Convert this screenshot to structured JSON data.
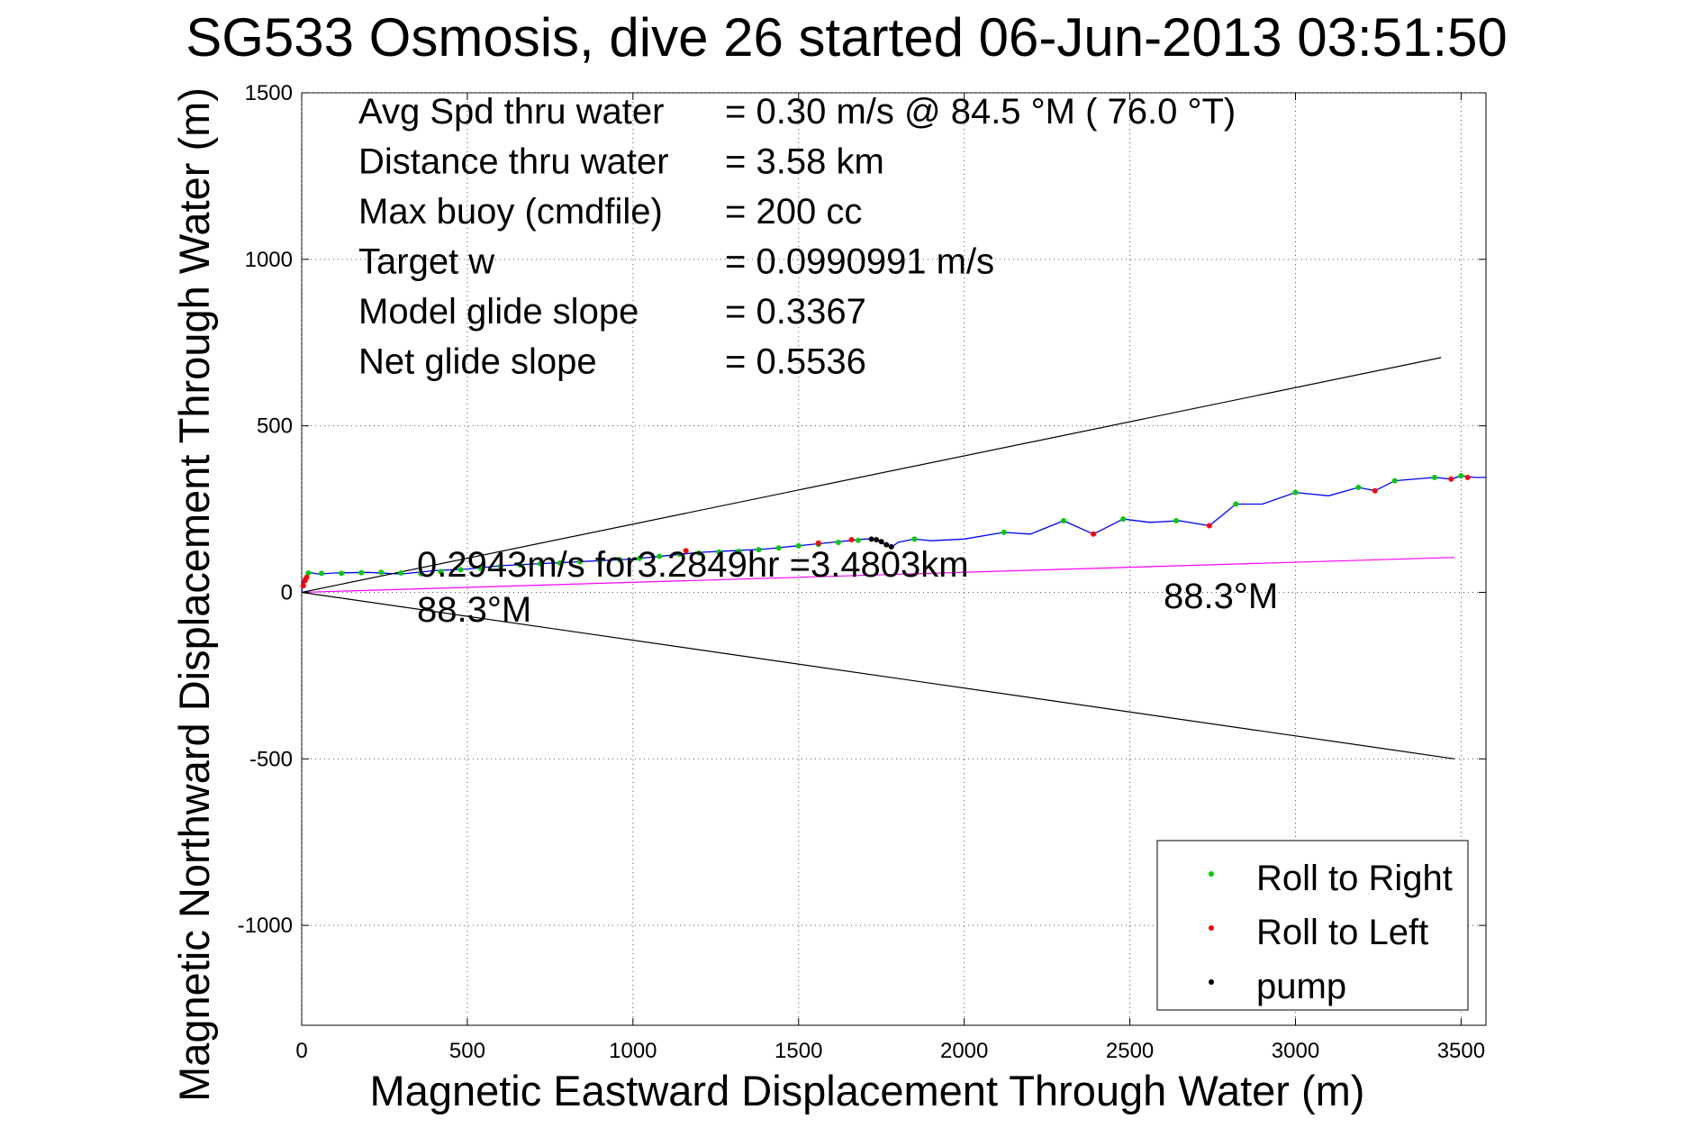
{
  "chart_data": {
    "type": "line",
    "title": "SG533 Osmosis, dive 26 started 06-Jun-2013 03:51:50",
    "xlabel": "Magnetic Eastward Displacement Through Water (m)",
    "ylabel": "Magnetic Northward Displacement Through Water (m)",
    "xlim": [
      0,
      3575
    ],
    "ylim": [
      -1300,
      1500
    ],
    "xticks": [
      0,
      500,
      1000,
      1500,
      2000,
      2500,
      3000,
      3500
    ],
    "yticks": [
      -1000,
      -500,
      0,
      500,
      1000,
      1500
    ],
    "grid": true,
    "info_lines": [
      {
        "label": "Avg Spd thru water",
        "value": "=  0.30 m/s @  84.5 °M ( 76.0 °T)"
      },
      {
        "label": "Distance thru water",
        "value": "=  3.58 km"
      },
      {
        "label": "Max buoy (cmdfile)",
        "value": "= 200 cc"
      },
      {
        "label": "Target w",
        "value": "= 0.0990991 m/s"
      },
      {
        "label": "Model glide slope",
        "value": "= 0.3367"
      },
      {
        "label": "Net glide slope",
        "value": "= 0.5536"
      }
    ],
    "annotations": {
      "speed_line": "0.2943m/s for3.2849hr =3.4803km",
      "heading_start": "88.3°M",
      "heading_end": "88.3°M"
    },
    "legend": {
      "position": "bottom-right",
      "entries": [
        {
          "label": "Roll to Right",
          "color": "#00cc00"
        },
        {
          "label": "Roll to Left",
          "color": "#ff0000"
        },
        {
          "label": "pump",
          "color": "#000000"
        }
      ]
    },
    "series": [
      {
        "role": "track",
        "color": "#0000ff",
        "x": [
          0,
          5,
          20,
          50,
          100,
          200,
          300,
          400,
          500,
          600,
          700,
          800,
          900,
          1000,
          1100,
          1200,
          1300,
          1400,
          1500,
          1550,
          1600,
          1650,
          1700,
          1730,
          1760,
          1780,
          1800,
          1850,
          1900,
          2000,
          2120,
          2200,
          2300,
          2390,
          2480,
          2560,
          2650,
          2740,
          2820,
          2900,
          3000,
          3100,
          3190,
          3240,
          3300,
          3420,
          3470,
          3500,
          3540,
          3575
        ],
        "y": [
          0,
          40,
          60,
          55,
          58,
          60,
          55,
          65,
          70,
          80,
          85,
          90,
          95,
          100,
          110,
          120,
          125,
          130,
          140,
          145,
          150,
          155,
          160,
          160,
          145,
          135,
          150,
          160,
          155,
          160,
          180,
          175,
          215,
          175,
          220,
          210,
          215,
          200,
          265,
          265,
          300,
          290,
          315,
          305,
          335,
          345,
          340,
          350,
          345,
          345
        ]
      },
      {
        "role": "speed-vector",
        "color": "#ff00ff",
        "x": [
          0,
          3480
        ],
        "y": [
          0,
          105
        ]
      },
      {
        "role": "cone-upper",
        "color": "#000000",
        "x": [
          0,
          3440
        ],
        "y": [
          0,
          705
        ]
      },
      {
        "role": "cone-lower",
        "color": "#000000",
        "x": [
          0,
          3480
        ],
        "y": [
          0,
          -500
        ]
      }
    ],
    "markers": {
      "roll_right": {
        "x": [
          20,
          60,
          120,
          180,
          240,
          300,
          360,
          420,
          480,
          540,
          600,
          660,
          720,
          780,
          840,
          900,
          960,
          1020,
          1080,
          1140,
          1200,
          1260,
          1320,
          1380,
          1440,
          1500,
          1560,
          1620,
          1680,
          1850,
          2120,
          2300,
          2480,
          2640,
          2820,
          3000,
          3190,
          3300,
          3420,
          3500
        ],
        "y": [
          58,
          57,
          57,
          59,
          60,
          58,
          56,
          62,
          68,
          72,
          78,
          82,
          86,
          88,
          92,
          95,
          98,
          102,
          108,
          115,
          118,
          121,
          123,
          128,
          133,
          140,
          144,
          150,
          156,
          160,
          180,
          215,
          220,
          215,
          265,
          300,
          315,
          335,
          345,
          350
        ]
      },
      "roll_left": {
        "x": [
          5,
          10,
          15,
          1160,
          1560,
          1660,
          2390,
          2740,
          3240,
          3470,
          3520
        ],
        "y": [
          20,
          35,
          45,
          125,
          148,
          158,
          175,
          200,
          305,
          340,
          345
        ]
      },
      "pump": {
        "x": [
          1720,
          1735,
          1750,
          1765,
          1780
        ],
        "y": [
          160,
          158,
          152,
          143,
          137
        ]
      }
    }
  }
}
